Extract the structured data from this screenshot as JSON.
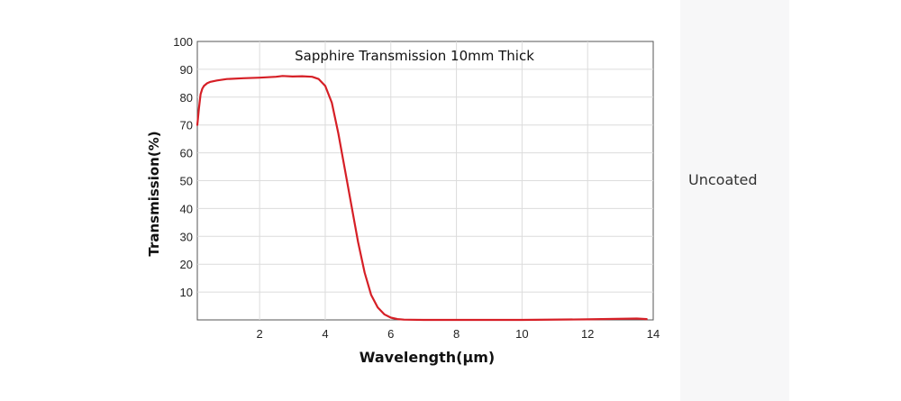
{
  "chart_data": {
    "type": "line",
    "title": "Sapphire Transmission 10mm Thick",
    "xlabel": "Wavelength(μm)",
    "ylabel": "Transmission(%)",
    "xlim": [
      0.1,
      14
    ],
    "ylim": [
      0,
      100
    ],
    "xticks": [
      2,
      4,
      6,
      8,
      10,
      12,
      14
    ],
    "yticks": [
      10,
      20,
      30,
      40,
      50,
      60,
      70,
      80,
      90,
      100
    ],
    "grid": true,
    "series": [
      {
        "color": "#d61f26",
        "x": [
          0.1,
          0.15,
          0.2,
          0.25,
          0.3,
          0.4,
          0.5,
          0.7,
          1.0,
          1.5,
          2.0,
          2.5,
          2.7,
          3.0,
          3.3,
          3.6,
          3.8,
          4.0,
          4.2,
          4.4,
          4.6,
          4.8,
          5.0,
          5.2,
          5.4,
          5.6,
          5.8,
          6.0,
          6.2,
          6.4,
          6.6,
          7.0,
          8.0,
          10.0,
          12.0,
          13.5,
          13.8
        ],
        "y": [
          70,
          76,
          81,
          83,
          84,
          85,
          85.5,
          86,
          86.5,
          86.8,
          87,
          87.3,
          87.6,
          87.4,
          87.5,
          87.3,
          86.5,
          84,
          78,
          67,
          54,
          41,
          28,
          17,
          9,
          4.5,
          2,
          0.8,
          0.3,
          0.1,
          0.05,
          0,
          0,
          0,
          0.2,
          0.5,
          0.3
        ]
      }
    ]
  },
  "side_label": "Uncoated"
}
